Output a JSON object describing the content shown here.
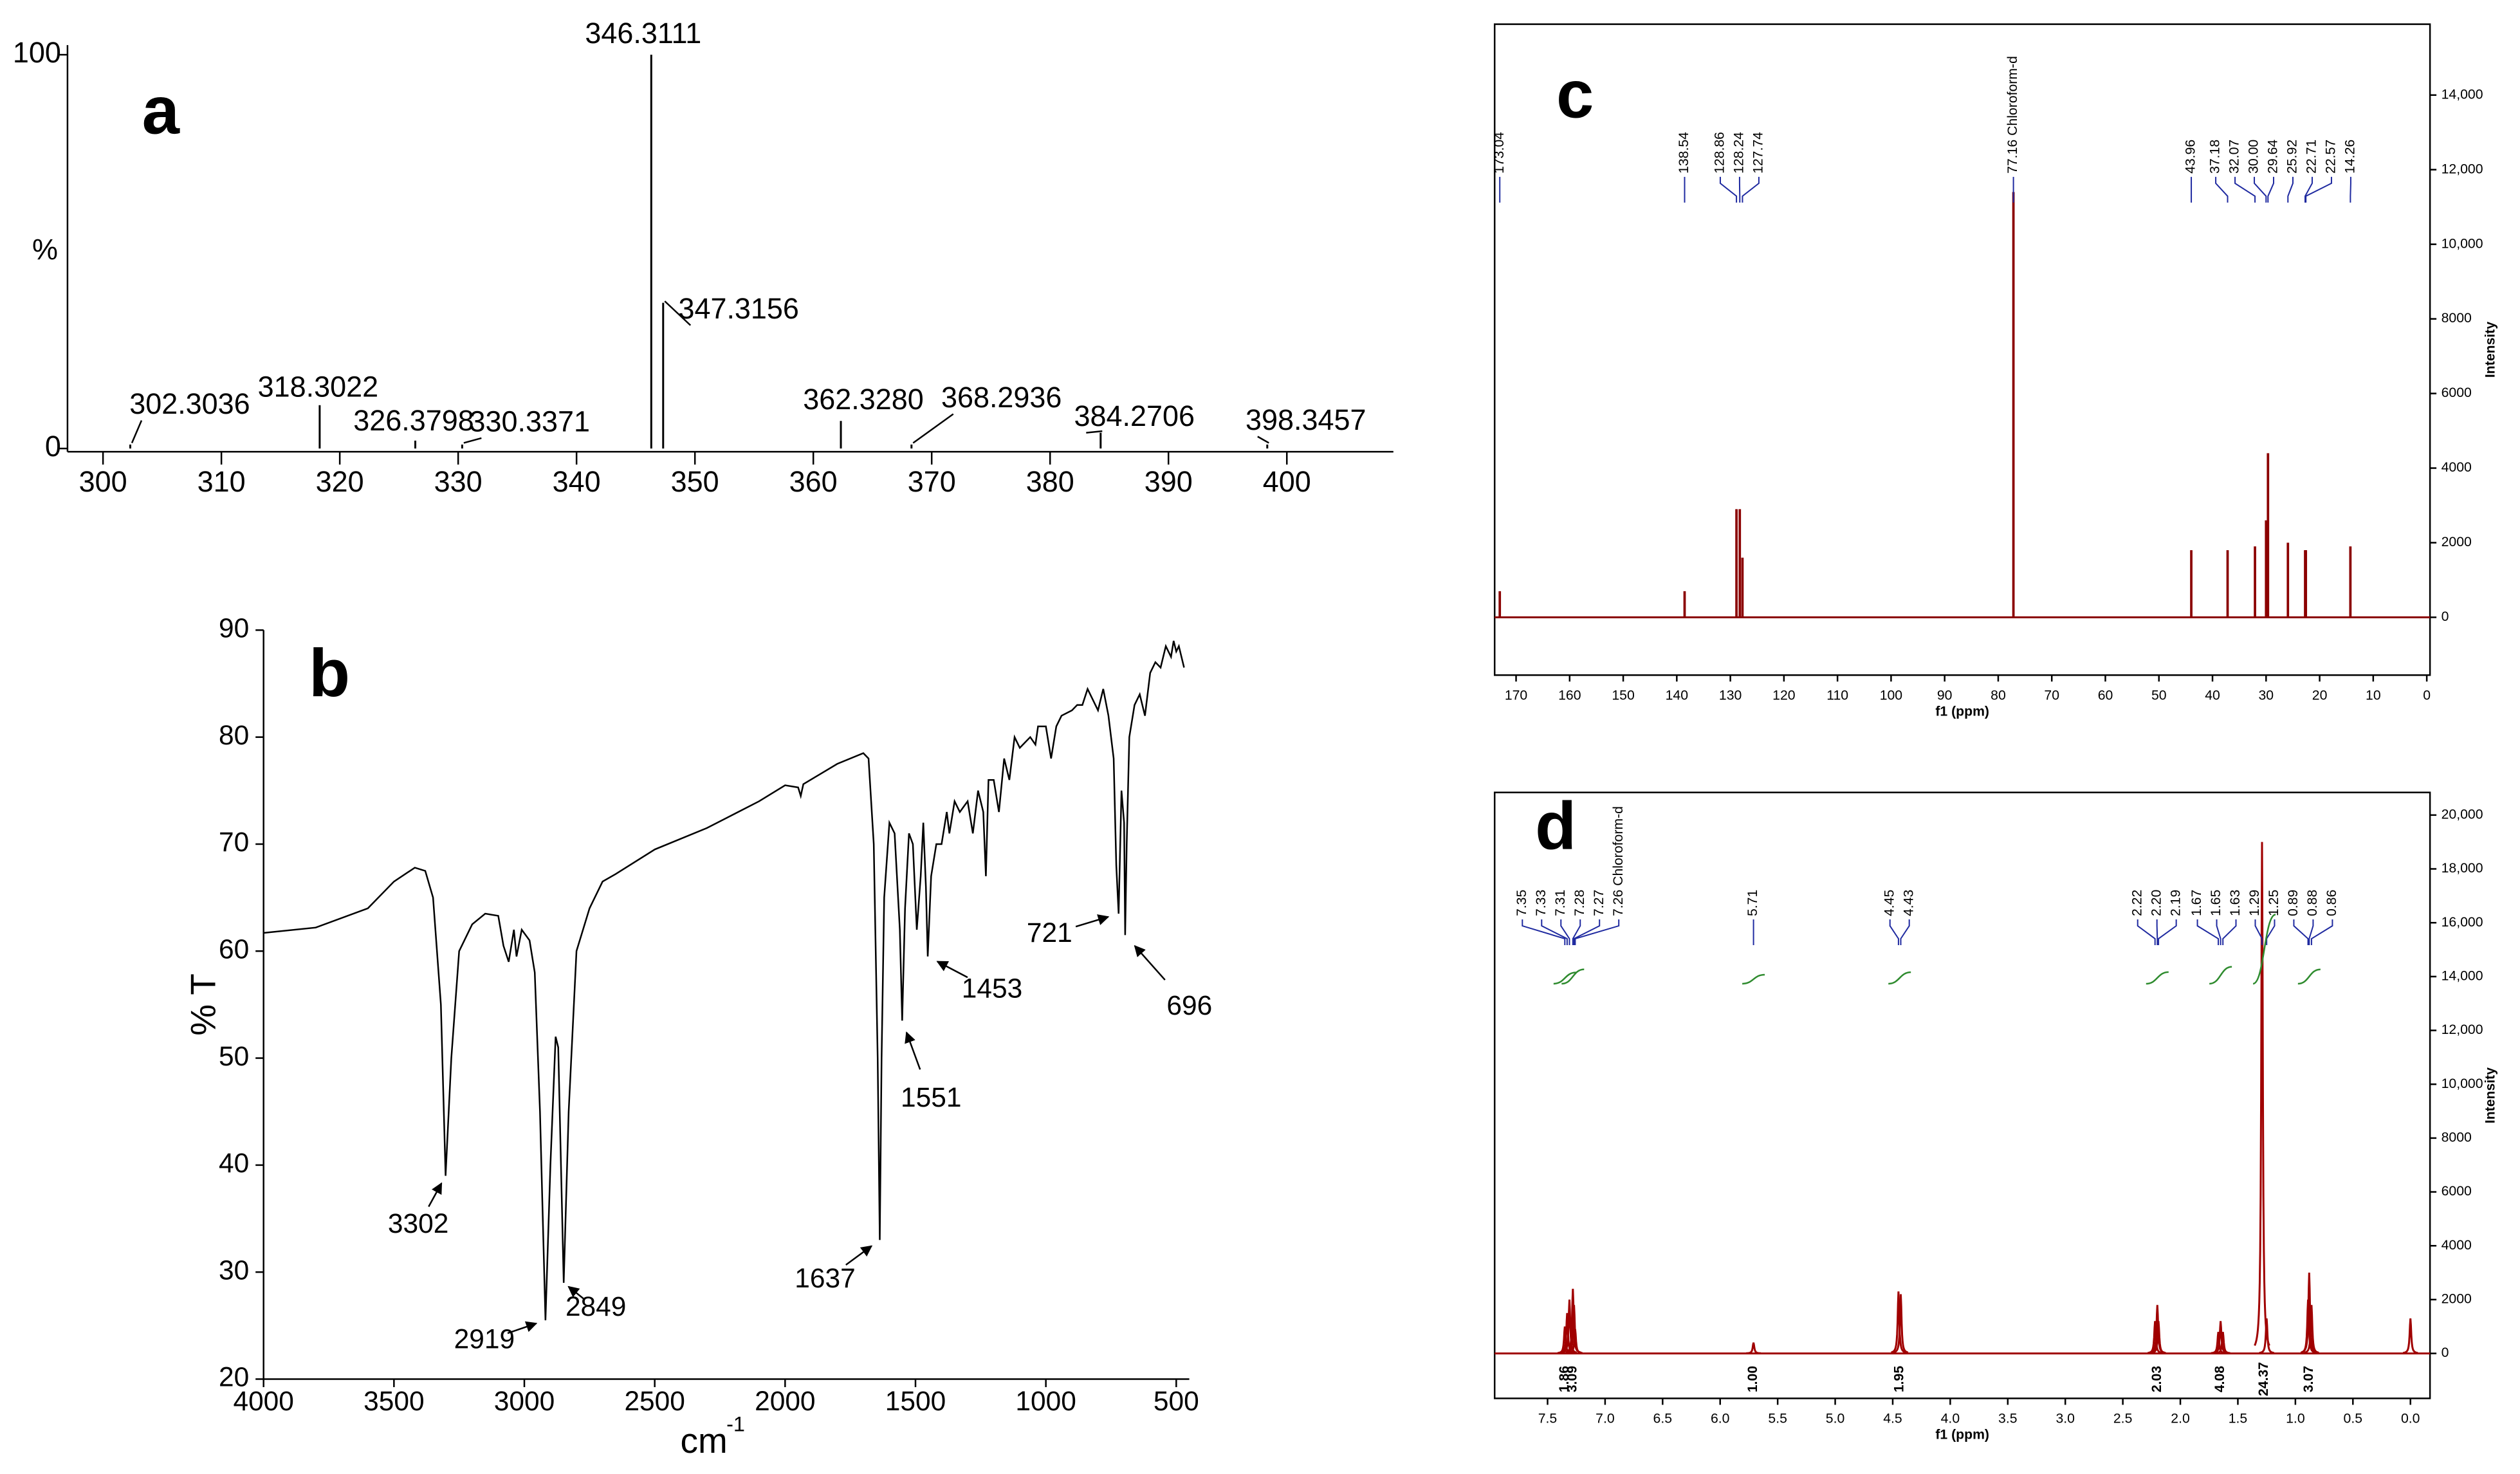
{
  "chart_data": [
    {
      "type": "bar",
      "panel": "a",
      "color": "#000000",
      "x": [
        302.3036,
        318.3022,
        326.3798,
        330.3371,
        346.3111,
        347.3156,
        362.328,
        368.2936,
        384.2706,
        398.3457
      ],
      "values": [
        1,
        11,
        2,
        1,
        100,
        37,
        7,
        1,
        4,
        1
      ],
      "x_labels": [
        "302.3036",
        "318.3022",
        "326.3798",
        "330.3371",
        "346.3111",
        "347.3156",
        "362.3280",
        "368.2936",
        "384.2706",
        "398.3457"
      ],
      "xlim": [
        297,
        409
      ],
      "xticks": [
        300,
        310,
        320,
        330,
        340,
        350,
        360,
        370,
        380,
        390,
        400
      ],
      "ylim": [
        0,
        100
      ],
      "yticks": [
        0,
        100
      ],
      "y_label": "%"
    },
    {
      "type": "line",
      "panel": "b",
      "x": [
        4000,
        3800,
        3600,
        3500,
        3420,
        3380,
        3350,
        3320,
        3302,
        3280,
        3250,
        3200,
        3150,
        3100,
        3080,
        3060,
        3040,
        3030,
        3010,
        2980,
        2960,
        2940,
        2919,
        2900,
        2880,
        2870,
        2849,
        2830,
        2800,
        2750,
        2700,
        2650,
        2500,
        2300,
        2100,
        2000,
        1950,
        1940,
        1930,
        1800,
        1700,
        1680,
        1660,
        1645,
        1637,
        1630,
        1620,
        1600,
        1580,
        1560,
        1551,
        1540,
        1525,
        1510,
        1495,
        1480,
        1470,
        1460,
        1453,
        1440,
        1420,
        1400,
        1380,
        1370,
        1350,
        1330,
        1300,
        1280,
        1260,
        1240,
        1230,
        1220,
        1200,
        1180,
        1160,
        1140,
        1120,
        1100,
        1080,
        1060,
        1040,
        1030,
        1000,
        980,
        960,
        940,
        900,
        880,
        860,
        840,
        800,
        780,
        760,
        740,
        730,
        721,
        710,
        700,
        696,
        690,
        680,
        660,
        640,
        620,
        600,
        580,
        560,
        540,
        520,
        510,
        500,
        490,
        470
      ],
      "series": [
        {
          "color": "#000000",
          "values": [
            61.7,
            62.2,
            64,
            66.5,
            67.8,
            67.5,
            65,
            55,
            39,
            50,
            60,
            62.5,
            63.5,
            63.3,
            60.5,
            59,
            62,
            59.5,
            62,
            61,
            58,
            45,
            25.5,
            40,
            52,
            51,
            29,
            45,
            60,
            64,
            66.5,
            67.2,
            69.5,
            71.5,
            74,
            75.5,
            75.3,
            74.5,
            75.6,
            77.5,
            78.5,
            78,
            70,
            50,
            33,
            50,
            65,
            72,
            71,
            62,
            53.5,
            64,
            71,
            70,
            62,
            67,
            72,
            66,
            59.5,
            67,
            70,
            70,
            73,
            71,
            74,
            73,
            74,
            71,
            75,
            73,
            67,
            76,
            76,
            73,
            78,
            76,
            80,
            79,
            79.5,
            80,
            79.3,
            81,
            81,
            78,
            81,
            82,
            82.5,
            83,
            83,
            84.5,
            82.5,
            84.5,
            82,
            78,
            68,
            63.5,
            75,
            72,
            61.5,
            70,
            80,
            83,
            84,
            82,
            86,
            87,
            86.5,
            88.5,
            87.5,
            89,
            88,
            88.5,
            86.5
          ]
        }
      ],
      "xlim": [
        4000,
        450
      ],
      "xticks": [
        4000,
        3500,
        3000,
        2500,
        2000,
        1500,
        1000,
        500
      ],
      "ylim": [
        20,
        90
      ],
      "yticks": [
        20,
        30,
        40,
        50,
        60,
        70,
        80,
        90
      ],
      "x_label": "cm",
      "x_label_sup": "-1",
      "y_label": "% T",
      "peak_annotations": [
        3302,
        2919,
        2849,
        1637,
        1551,
        1453,
        721,
        696
      ]
    },
    {
      "type": "stick",
      "panel": "c",
      "color": "#8b0000",
      "label_color": "#1f2aa0",
      "x": [
        173.04,
        138.54,
        128.86,
        128.24,
        127.74,
        77.16,
        43.96,
        37.18,
        32.07,
        30.0,
        29.64,
        25.92,
        22.71,
        22.57,
        14.26
      ],
      "values": [
        700,
        700,
        2900,
        2900,
        1600,
        11400,
        1800,
        1800,
        1900,
        2600,
        4400,
        2000,
        1800,
        1800,
        1900
      ],
      "x_labels": [
        "173.04",
        "138.54",
        "128.86",
        "128.24",
        "127.74",
        "77.16 Chloroform-d",
        "43.96",
        "37.18",
        "32.07",
        "30.00",
        "29.64",
        "25.92",
        "22.71",
        "22.57",
        "14.26"
      ],
      "xlim": [
        174,
        -0.6
      ],
      "xticks": [
        170,
        160,
        150,
        140,
        130,
        120,
        110,
        100,
        90,
        80,
        70,
        60,
        50,
        40,
        30,
        20,
        10,
        0
      ],
      "ylim": [
        -1550,
        15900
      ],
      "yticks": [
        0,
        2000,
        4000,
        6000,
        8000,
        {
          "value": 10000,
          "label": "10,000"
        },
        {
          "value": 12000,
          "label": "12,000"
        },
        {
          "value": 14000,
          "label": "14,000"
        }
      ],
      "x_label": "f1 (ppm)",
      "y_label": "Intensity"
    },
    {
      "type": "peak",
      "panel": "d",
      "color": "#a00000",
      "label_color": "#1f2aa0",
      "integral_color": "#2e8b2e",
      "x": [
        7.35,
        7.33,
        7.31,
        7.28,
        7.27,
        7.26,
        5.71,
        4.45,
        4.43,
        2.22,
        2.2,
        2.19,
        1.67,
        1.65,
        1.63,
        1.29,
        1.25,
        0.89,
        0.88,
        0.86,
        0.0
      ],
      "values": [
        1000,
        1500,
        2000,
        2400,
        1800,
        900,
        400,
        2300,
        2200,
        1200,
        1800,
        1200,
        800,
        1200,
        800,
        19000,
        1300,
        2000,
        3000,
        1800,
        1300
      ],
      "x_labels": [
        "7.35",
        "7.33",
        "7.31",
        "7.28",
        "7.27",
        "7.26 Chloroform-d",
        "5.71",
        "4.45",
        "4.43",
        "2.22",
        "2.20",
        "2.19",
        "1.67",
        "1.65",
        "1.63",
        "1.29",
        "1.25",
        "0.89",
        "0.88",
        "0.86",
        null
      ],
      "integrals": {
        "x": [
          7.35,
          7.28,
          5.71,
          4.44,
          2.2,
          1.65,
          1.27,
          0.88
        ],
        "values": [
          1.86,
          3.09,
          1.0,
          1.95,
          2.03,
          4.08,
          24.37,
          3.07
        ],
        "value_labels": [
          "1.86",
          "3.09",
          "1.00",
          "1.95",
          "2.03",
          "4.08",
          "24.37",
          "3.07"
        ]
      },
      "xlim": [
        7.96,
        -0.17
      ],
      "xticks": [
        7.5,
        {
          "value": 7,
          "label": "7.0"
        },
        6.5,
        {
          "value": 6,
          "label": "6.0"
        },
        5.5,
        {
          "value": 5,
          "label": "5.0"
        },
        4.5,
        {
          "value": 4,
          "label": "4.0"
        },
        3.5,
        {
          "value": 3,
          "label": "3.0"
        },
        2.5,
        {
          "value": 2,
          "label": "2.0"
        },
        1.5,
        {
          "value": 1,
          "label": "1.0"
        },
        0.5,
        {
          "value": 0,
          "label": "0.0"
        }
      ],
      "ylim": [
        -1670,
        20840
      ],
      "yticks": [
        0,
        2000,
        4000,
        6000,
        8000,
        {
          "value": 10000,
          "label": "10,000"
        },
        {
          "value": 12000,
          "label": "12,000"
        },
        {
          "value": 14000,
          "label": "14,000"
        },
        {
          "value": 16000,
          "label": "16,000"
        },
        {
          "value": 18000,
          "label": "18,000"
        },
        {
          "value": 20000,
          "label": "20,000"
        }
      ],
      "x_label": "f1 (ppm)",
      "y_label": "Intensity"
    }
  ]
}
